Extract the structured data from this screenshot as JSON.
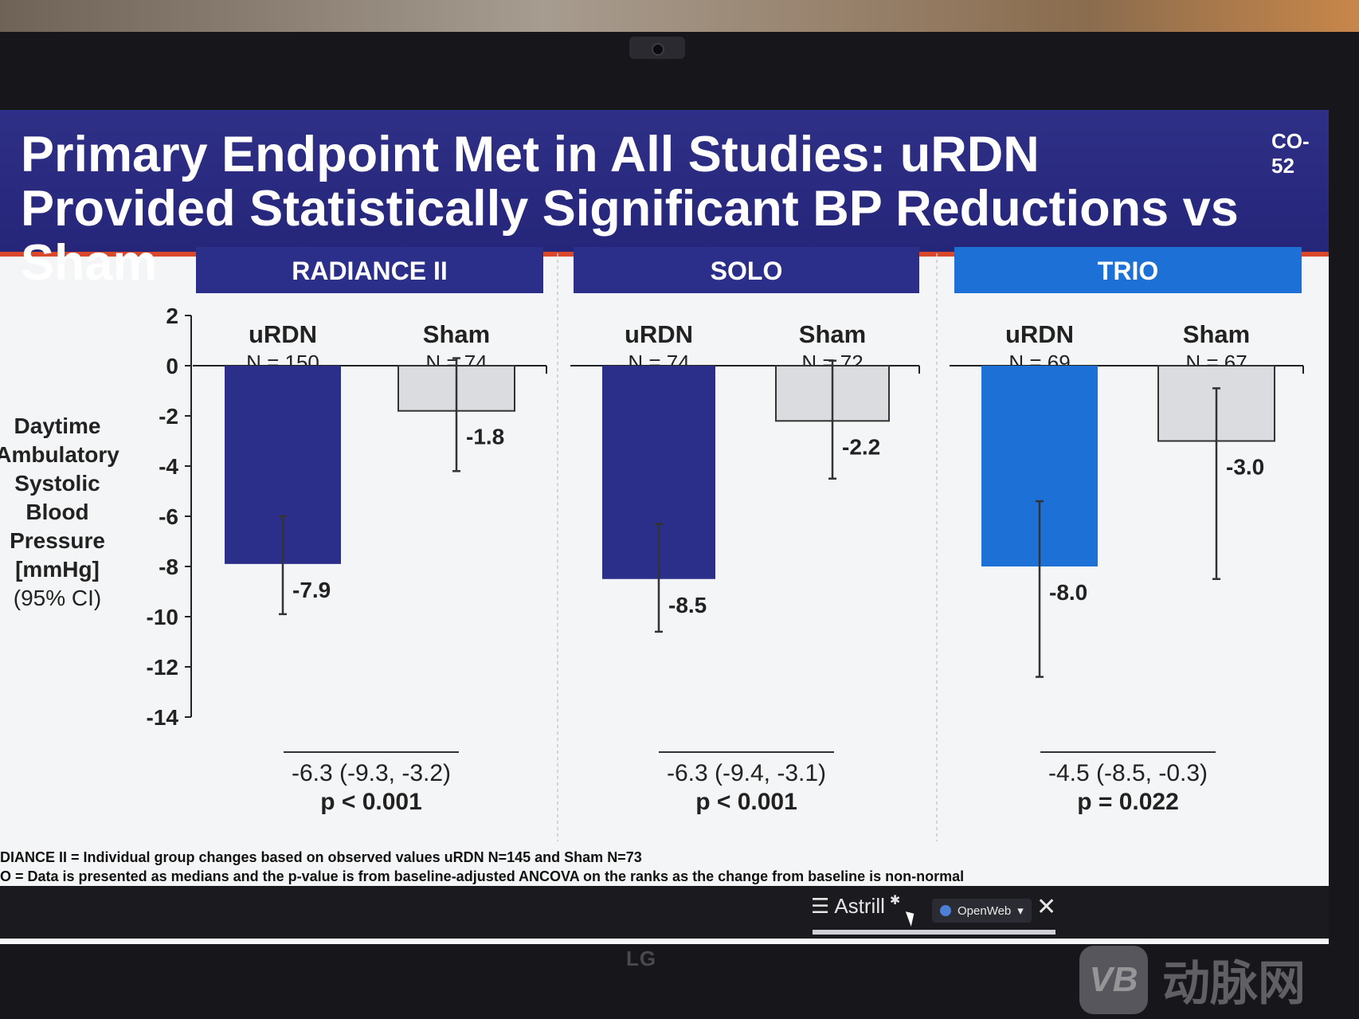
{
  "slide": {
    "title": "Primary Endpoint Met in All Studies: uRDN Provided Statistically Significant BP Reductions vs Sham",
    "code": "CO-52"
  },
  "chart_data": {
    "type": "bar",
    "title": "Primary Endpoint Met in All Studies: uRDN Provided Statistically Significant BP Reductions vs Sham",
    "ylabel_lines": [
      "Daytime",
      "Ambulatory",
      "Systolic",
      "Blood",
      "Pressure",
      "[mmHg]",
      "(95% CI)"
    ],
    "ylim": [
      -14,
      2
    ],
    "yticks": [
      "2",
      "0",
      "-2",
      "-4",
      "-6",
      "-8",
      "-10",
      "-12",
      "-14"
    ],
    "studies": [
      {
        "name": "RADIANCE II",
        "header_color": "#2b2f8a",
        "arms": [
          {
            "label": "uRDN",
            "n": "N = 150",
            "value": -7.9,
            "value_label": "-7.9",
            "ci_low": -9.9,
            "ci_high": -6.0,
            "color": "#2b2f8a"
          },
          {
            "label": "Sham",
            "n": "N = 74",
            "value": -1.8,
            "value_label": "-1.8",
            "ci_low": -4.2,
            "ci_high": 0.3,
            "color": "#dadce0"
          }
        ],
        "difference": "-6.3 (-9.3, -3.2)",
        "p_value": "p < 0.001"
      },
      {
        "name": "SOLO",
        "header_color": "#2b2f8a",
        "arms": [
          {
            "label": "uRDN",
            "n": "N = 74",
            "value": -8.5,
            "value_label": "-8.5",
            "ci_low": -10.6,
            "ci_high": -6.3,
            "color": "#2b2f8a"
          },
          {
            "label": "Sham",
            "n": "N = 72",
            "value": -2.2,
            "value_label": "-2.2",
            "ci_low": -4.5,
            "ci_high": 0.2,
            "color": "#dadce0"
          }
        ],
        "difference": "-6.3 (-9.4, -3.1)",
        "p_value": "p < 0.001"
      },
      {
        "name": "TRIO",
        "header_color": "#1d71d6",
        "arms": [
          {
            "label": "uRDN",
            "n": "N = 69",
            "value": -8.0,
            "value_label": "-8.0",
            "ci_low": -12.4,
            "ci_high": -5.4,
            "color": "#1d71d6"
          },
          {
            "label": "Sham",
            "n": "N = 67",
            "value": -3.0,
            "value_label": "-3.0",
            "ci_low": -8.5,
            "ci_high": -0.9,
            "color": "#dadce0"
          }
        ],
        "difference": "-4.5 (-8.5, -0.3)",
        "p_value": "p = 0.022"
      }
    ]
  },
  "footnotes": [
    "DIANCE II = Individual group changes based on observed values uRDN N=145 and Sham N=73",
    "O = Data is presented as medians and the p-value is from baseline-adjusted ANCOVA on the ranks as the change from baseline is non-normal"
  ],
  "taskbar": {
    "astrill": "Astrill",
    "openweb": "OpenWeb"
  },
  "monitor": {
    "brand": "LG"
  },
  "watermark": {
    "text": "动脉网",
    "logo": "VB"
  },
  "colors": {
    "title_bg": "#2e2f86",
    "accent": "#d9482b"
  }
}
